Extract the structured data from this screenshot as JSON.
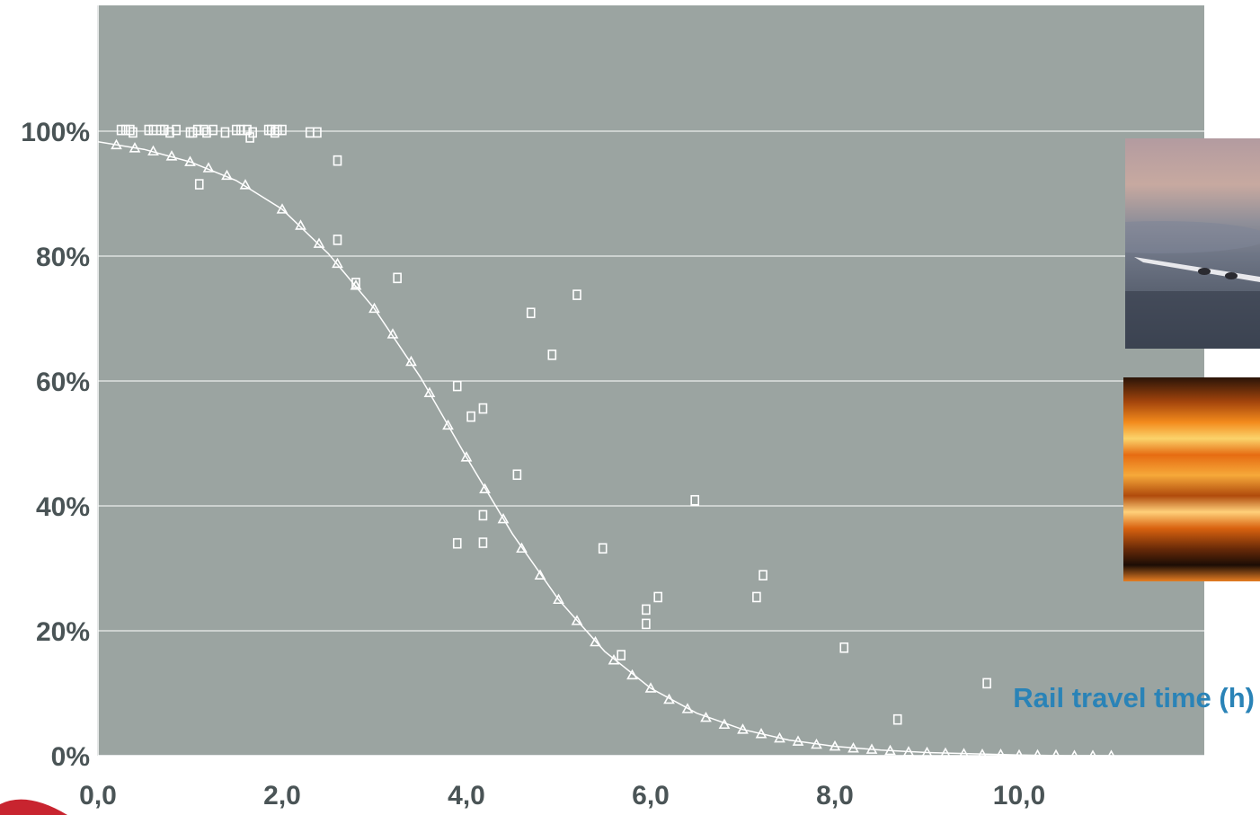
{
  "chart_data": {
    "type": "scatter",
    "xlabel": "Rail travel time (h)",
    "x_ticks": [
      "0,0",
      "2,0",
      "4,0",
      "6,0",
      "8,0",
      "10,0"
    ],
    "y_ticks": [
      "0%",
      "20%",
      "40%",
      "60%",
      "80%",
      "100%"
    ],
    "xlim": [
      0,
      12
    ],
    "ylim": [
      0,
      120
    ],
    "grid": "horizontal",
    "colors": {
      "plot_bg": "#9ba4a1",
      "marks": "#ffffff",
      "axis_title": "#2a83b7",
      "tick_labels": "#4a5456"
    },
    "series": [
      {
        "marker": "square",
        "points": [
          [
            0.25,
            100.2
          ],
          [
            0.3,
            100.2
          ],
          [
            0.35,
            100.2
          ],
          [
            0.38,
            99.8
          ],
          [
            0.55,
            100.2
          ],
          [
            0.6,
            100.2
          ],
          [
            0.68,
            100.2
          ],
          [
            0.72,
            100.2
          ],
          [
            0.78,
            99.8
          ],
          [
            0.85,
            100.2
          ],
          [
            1.0,
            99.8
          ],
          [
            1.03,
            99.8
          ],
          [
            1.08,
            100.2
          ],
          [
            1.15,
            100.2
          ],
          [
            1.18,
            99.8
          ],
          [
            1.25,
            100.2
          ],
          [
            1.38,
            99.8
          ],
          [
            1.5,
            100.2
          ],
          [
            1.55,
            100.2
          ],
          [
            1.62,
            100.2
          ],
          [
            1.68,
            99.8
          ],
          [
            1.85,
            100.2
          ],
          [
            1.88,
            100.2
          ],
          [
            1.92,
            99.8
          ],
          [
            1.95,
            100.2
          ],
          [
            2.0,
            100.2
          ],
          [
            2.3,
            99.8
          ],
          [
            2.38,
            99.8
          ],
          [
            1.1,
            91.5
          ],
          [
            1.65,
            99.0
          ],
          [
            2.6,
            95.3
          ],
          [
            2.6,
            82.6
          ],
          [
            2.8,
            75.7
          ],
          [
            3.25,
            76.5
          ],
          [
            3.9,
            59.2
          ],
          [
            3.9,
            34.0
          ],
          [
            4.05,
            54.3
          ],
          [
            4.18,
            55.6
          ],
          [
            4.18,
            38.5
          ],
          [
            4.18,
            34.1
          ],
          [
            4.55,
            45.0
          ],
          [
            4.7,
            70.9
          ],
          [
            4.93,
            64.2
          ],
          [
            5.2,
            73.8
          ],
          [
            5.48,
            33.2
          ],
          [
            5.68,
            16.1
          ],
          [
            5.95,
            23.4
          ],
          [
            5.95,
            21.1
          ],
          [
            6.08,
            25.4
          ],
          [
            6.48,
            40.9
          ],
          [
            7.15,
            25.4
          ],
          [
            7.22,
            28.9
          ],
          [
            8.1,
            17.3
          ],
          [
            8.68,
            5.8
          ],
          [
            9.65,
            11.6
          ]
        ]
      },
      {
        "marker": "triangle",
        "points": [
          [
            0.2,
            97.8
          ],
          [
            0.4,
            97.3
          ],
          [
            0.6,
            96.8
          ],
          [
            0.8,
            96.0
          ],
          [
            1.0,
            95.1
          ],
          [
            1.2,
            94.1
          ],
          [
            1.4,
            92.9
          ],
          [
            1.6,
            91.4
          ],
          [
            2.0,
            87.5
          ],
          [
            2.2,
            84.9
          ],
          [
            2.4,
            82.0
          ],
          [
            2.6,
            78.8
          ],
          [
            2.8,
            75.3
          ],
          [
            3.0,
            71.6
          ],
          [
            3.2,
            67.5
          ],
          [
            3.4,
            63.1
          ],
          [
            3.6,
            58.1
          ],
          [
            3.8,
            52.9
          ],
          [
            4.0,
            47.8
          ],
          [
            4.2,
            42.7
          ],
          [
            4.4,
            37.9
          ],
          [
            4.6,
            33.2
          ],
          [
            4.8,
            28.9
          ],
          [
            5.0,
            25.0
          ],
          [
            5.2,
            21.6
          ],
          [
            5.4,
            18.2
          ],
          [
            5.6,
            15.3
          ],
          [
            5.8,
            12.9
          ],
          [
            6.0,
            10.8
          ],
          [
            6.2,
            9.0
          ],
          [
            6.4,
            7.5
          ],
          [
            6.6,
            6.1
          ],
          [
            6.8,
            5.0
          ],
          [
            7.0,
            4.2
          ],
          [
            7.2,
            3.5
          ],
          [
            7.4,
            2.8
          ],
          [
            7.6,
            2.3
          ],
          [
            7.8,
            1.8
          ],
          [
            8.0,
            1.5
          ],
          [
            8.2,
            1.2
          ],
          [
            8.4,
            1.0
          ],
          [
            8.6,
            0.8
          ],
          [
            8.8,
            0.6
          ],
          [
            9.0,
            0.5
          ],
          [
            9.2,
            0.4
          ],
          [
            9.4,
            0.3
          ],
          [
            9.6,
            0.2
          ],
          [
            9.8,
            0.2
          ],
          [
            10.0,
            0.1
          ],
          [
            10.2,
            0.1
          ],
          [
            10.4,
            0.1
          ],
          [
            10.6,
            0.0
          ],
          [
            10.8,
            0.0
          ],
          [
            11.0,
            0.0
          ]
        ]
      }
    ],
    "trend_line": {
      "x": [
        0,
        0.5,
        1.0,
        1.5,
        2.0,
        2.5,
        3.0,
        3.5,
        4.0,
        4.5,
        5.0,
        5.5,
        6.0,
        6.5,
        7.0,
        7.5,
        8.0,
        8.5,
        9.0,
        9.5,
        10.0,
        10.5,
        11.0
      ],
      "y": [
        98.3,
        97.1,
        95.1,
        92.1,
        87.5,
        80.4,
        71.6,
        60.6,
        47.8,
        35.5,
        25.0,
        16.7,
        10.8,
        6.8,
        4.2,
        2.5,
        1.5,
        0.9,
        0.5,
        0.3,
        0.1,
        0.0,
        0.0
      ]
    }
  }
}
